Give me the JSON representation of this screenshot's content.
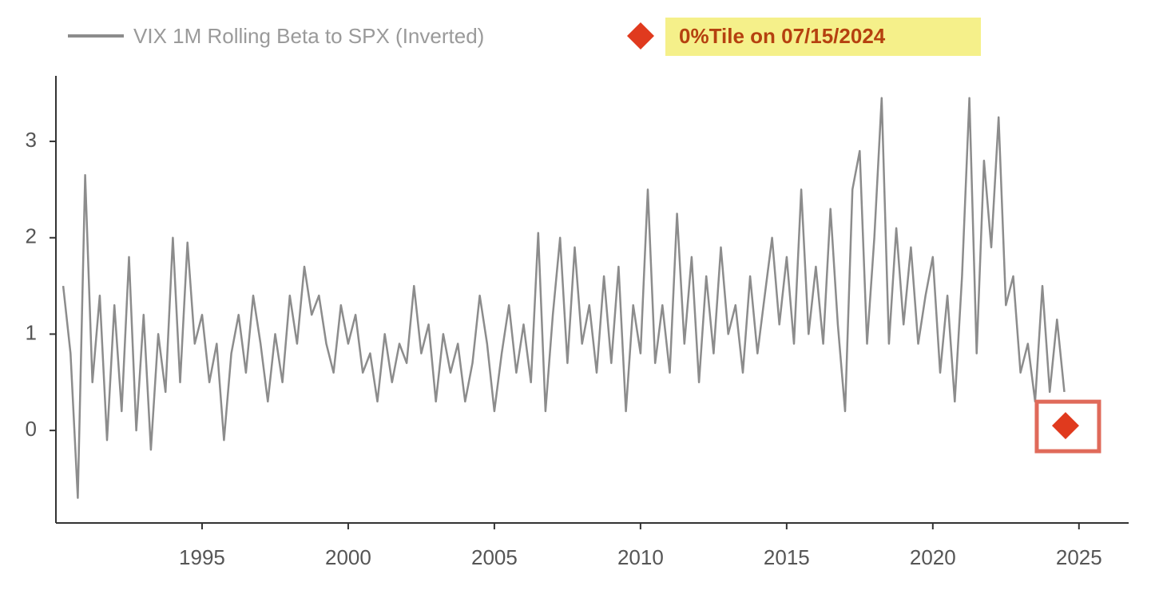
{
  "chart_data": {
    "type": "line",
    "xlim": [
      1990,
      2026.7
    ],
    "ylim": [
      -0.96,
      3.68
    ],
    "xticks": [
      1995,
      2000,
      2005,
      2010,
      2015,
      2020,
      2025
    ],
    "yticks": [
      0,
      1,
      2,
      3
    ],
    "legend": "top-left",
    "series": [
      {
        "name": "VIX 1M Rolling Beta to SPX (Inverted)",
        "color": "#8c8c8c",
        "marker": "line",
        "x": [
          1990.25,
          1990.5,
          1990.75,
          1991,
          1991.25,
          1991.5,
          1991.75,
          1992,
          1992.25,
          1992.5,
          1992.75,
          1993,
          1993.25,
          1993.5,
          1993.75,
          1994,
          1994.25,
          1994.5,
          1994.75,
          1995,
          1995.25,
          1995.5,
          1995.75,
          1996,
          1996.25,
          1996.5,
          1996.75,
          1997,
          1997.25,
          1997.5,
          1997.75,
          1998,
          1998.25,
          1998.5,
          1998.75,
          1999,
          1999.25,
          1999.5,
          1999.75,
          2000,
          2000.25,
          2000.5,
          2000.75,
          2001,
          2001.25,
          2001.5,
          2001.75,
          2002,
          2002.25,
          2002.5,
          2002.75,
          2003,
          2003.25,
          2003.5,
          2003.75,
          2004,
          2004.25,
          2004.5,
          2004.75,
          2005,
          2005.25,
          2005.5,
          2005.75,
          2006,
          2006.25,
          2006.5,
          2006.75,
          2007,
          2007.25,
          2007.5,
          2007.75,
          2008,
          2008.25,
          2008.5,
          2008.75,
          2009,
          2009.25,
          2009.5,
          2009.75,
          2010,
          2010.25,
          2010.5,
          2010.75,
          2011,
          2011.25,
          2011.5,
          2011.75,
          2012,
          2012.25,
          2012.5,
          2012.75,
          2013,
          2013.25,
          2013.5,
          2013.75,
          2014,
          2014.25,
          2014.5,
          2014.75,
          2015,
          2015.25,
          2015.5,
          2015.75,
          2016,
          2016.25,
          2016.5,
          2016.75,
          2017,
          2017.25,
          2017.5,
          2017.75,
          2018,
          2018.25,
          2018.5,
          2018.75,
          2019,
          2019.25,
          2019.5,
          2019.75,
          2020,
          2020.25,
          2020.5,
          2020.75,
          2021,
          2021.25,
          2021.5,
          2021.75,
          2022,
          2022.25,
          2022.5,
          2022.75,
          2023,
          2023.25,
          2023.5,
          2023.75,
          2024,
          2024.25,
          2024.5
        ],
        "values": [
          1.5,
          0.8,
          -0.7,
          2.65,
          0.5,
          1.4,
          -0.1,
          1.3,
          0.2,
          1.8,
          0.0,
          1.2,
          -0.2,
          1.0,
          0.4,
          2.0,
          0.5,
          1.95,
          0.9,
          1.2,
          0.5,
          0.9,
          -0.1,
          0.8,
          1.2,
          0.6,
          1.4,
          0.9,
          0.3,
          1.0,
          0.5,
          1.4,
          0.9,
          1.7,
          1.2,
          1.4,
          0.9,
          0.6,
          1.3,
          0.9,
          1.2,
          0.6,
          0.8,
          0.3,
          1.0,
          0.5,
          0.9,
          0.7,
          1.5,
          0.8,
          1.1,
          0.3,
          1.0,
          0.6,
          0.9,
          0.3,
          0.7,
          1.4,
          0.9,
          0.2,
          0.8,
          1.3,
          0.6,
          1.1,
          0.5,
          2.05,
          0.2,
          1.2,
          2.0,
          0.7,
          1.9,
          0.9,
          1.3,
          0.6,
          1.6,
          0.7,
          1.7,
          0.2,
          1.3,
          0.8,
          2.5,
          0.7,
          1.3,
          0.6,
          2.25,
          0.9,
          1.8,
          0.5,
          1.6,
          0.8,
          1.9,
          1.0,
          1.3,
          0.6,
          1.6,
          0.8,
          1.4,
          2.0,
          1.1,
          1.8,
          0.9,
          2.5,
          1.0,
          1.7,
          0.9,
          2.3,
          1.1,
          0.2,
          2.5,
          2.9,
          0.9,
          2.0,
          3.45,
          0.9,
          2.1,
          1.1,
          1.9,
          0.9,
          1.4,
          1.8,
          0.6,
          1.4,
          0.3,
          1.6,
          3.45,
          0.8,
          2.8,
          1.9,
          3.25,
          1.3,
          1.6,
          0.6,
          0.9,
          0.3,
          1.5,
          0.4,
          1.15,
          0.4
        ]
      },
      {
        "name": "0%Tile on 07/15/2024",
        "color": "#e03a1e",
        "marker": "diamond",
        "x": [
          2024.54
        ],
        "values": [
          0.05
        ]
      }
    ]
  }
}
